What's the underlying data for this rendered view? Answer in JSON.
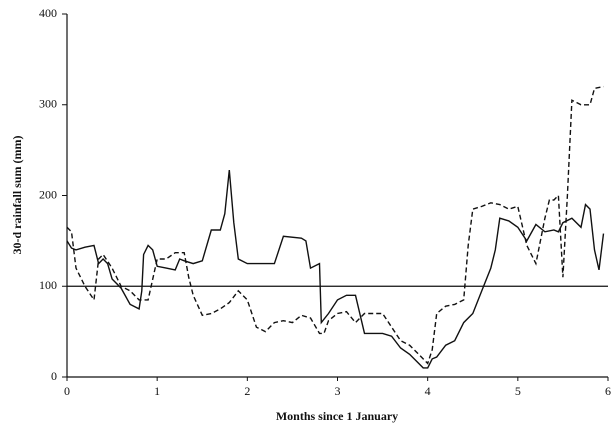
{
  "chart_data": {
    "type": "line",
    "xlabel": "Months since 1 January",
    "ylabel": "30-d rainfall sum (mm)",
    "xlim": [
      0,
      6
    ],
    "xticks": [
      0,
      1,
      2,
      3,
      4,
      5,
      6
    ],
    "ylim": [
      0,
      400
    ],
    "yticks": [
      0,
      100,
      200,
      300,
      400
    ],
    "reference_line": 100,
    "series": [
      {
        "color": "#111111",
        "style": "solid",
        "x": [
          0,
          0.05,
          0.1,
          0.2,
          0.3,
          0.35,
          0.4,
          0.45,
          0.5,
          0.6,
          0.7,
          0.8,
          0.83,
          0.85,
          0.9,
          0.95,
          1.0,
          1.1,
          1.2,
          1.25,
          1.3,
          1.4,
          1.5,
          1.6,
          1.7,
          1.75,
          1.8,
          1.85,
          1.9,
          2.0,
          2.2,
          2.3,
          2.4,
          2.6,
          2.65,
          2.7,
          2.8,
          2.82,
          2.9,
          3.0,
          3.1,
          3.2,
          3.3,
          3.4,
          3.5,
          3.6,
          3.7,
          3.8,
          3.9,
          3.95,
          4.0,
          4.05,
          4.1,
          4.2,
          4.3,
          4.4,
          4.5,
          4.6,
          4.7,
          4.75,
          4.8,
          4.9,
          5.0,
          5.1,
          5.2,
          5.3,
          5.4,
          5.45,
          5.5,
          5.6,
          5.7,
          5.75,
          5.8,
          5.85,
          5.9,
          5.95
        ],
        "values": [
          150,
          142,
          140,
          143,
          145,
          125,
          130,
          125,
          108,
          98,
          80,
          75,
          95,
          135,
          145,
          140,
          122,
          120,
          118,
          130,
          128,
          125,
          128,
          162,
          162,
          180,
          228,
          170,
          130,
          125,
          125,
          125,
          155,
          153,
          150,
          120,
          125,
          60,
          70,
          85,
          90,
          90,
          48,
          48,
          48,
          45,
          32,
          25,
          15,
          10,
          10,
          20,
          22,
          35,
          40,
          60,
          70,
          95,
          120,
          140,
          175,
          172,
          165,
          150,
          168,
          160,
          162,
          160,
          170,
          175,
          165,
          190,
          185,
          140,
          118,
          158
        ]
      },
      {
        "color": "#111111",
        "style": "dashed",
        "x": [
          0,
          0.05,
          0.1,
          0.2,
          0.3,
          0.35,
          0.4,
          0.5,
          0.6,
          0.7,
          0.8,
          0.9,
          1.0,
          1.1,
          1.2,
          1.3,
          1.35,
          1.4,
          1.5,
          1.6,
          1.7,
          1.8,
          1.9,
          2.0,
          2.1,
          2.2,
          2.3,
          2.4,
          2.5,
          2.6,
          2.7,
          2.8,
          2.85,
          2.9,
          3.0,
          3.1,
          3.2,
          3.3,
          3.4,
          3.5,
          3.6,
          3.7,
          3.8,
          3.9,
          4.0,
          4.05,
          4.1,
          4.2,
          4.3,
          4.4,
          4.45,
          4.5,
          4.6,
          4.7,
          4.8,
          4.9,
          5.0,
          5.1,
          5.2,
          5.3,
          5.35,
          5.4,
          5.45,
          5.5,
          5.55,
          5.6,
          5.7,
          5.8,
          5.85,
          5.95
        ],
        "values": [
          165,
          160,
          120,
          100,
          85,
          130,
          135,
          120,
          100,
          95,
          85,
          85,
          130,
          130,
          137,
          137,
          110,
          90,
          68,
          70,
          75,
          82,
          95,
          85,
          55,
          50,
          60,
          62,
          60,
          68,
          65,
          48,
          48,
          62,
          70,
          72,
          60,
          70,
          70,
          70,
          55,
          40,
          35,
          25,
          15,
          30,
          70,
          78,
          80,
          85,
          145,
          185,
          188,
          192,
          190,
          185,
          188,
          145,
          125,
          175,
          195,
          195,
          200,
          110,
          200,
          305,
          300,
          300,
          318,
          320
        ]
      }
    ]
  }
}
